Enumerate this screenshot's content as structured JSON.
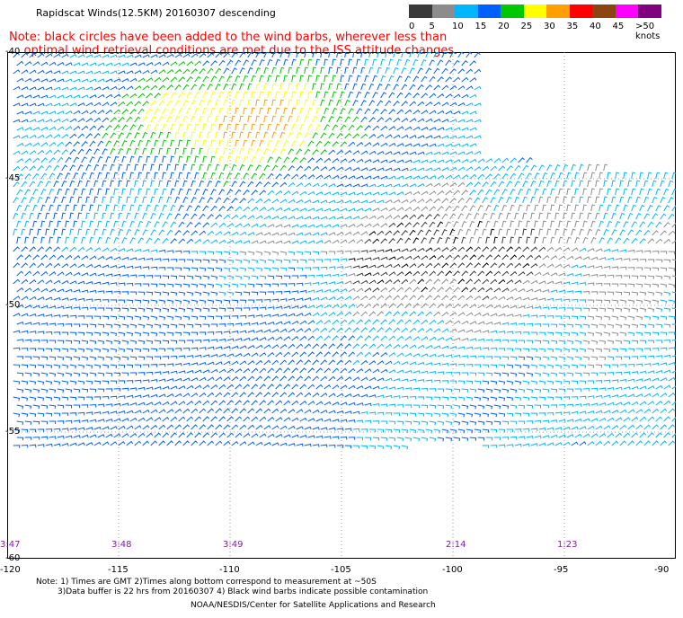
{
  "title": "Rapidscat Winds(12.5KM) 20160307 descending",
  "note": "Note: black circles have been added to the wind barbs, wherever less than\n    optimal wind retrieval conditions are met due to the ISS attitude changes.",
  "legend": {
    "labels": [
      "0",
      "5",
      "10",
      "15",
      "20",
      "25",
      "30",
      "35",
      "40",
      "45",
      ">50 knots"
    ],
    "colors": [
      "#3a3a3a",
      "#8c8c8c",
      "#00b7ff",
      "#0060ff",
      "#00c800",
      "#ffff00",
      "#ffa000",
      "#ff0000",
      "#8b4513",
      "#ff00ff",
      "#800080"
    ]
  },
  "map": {
    "lon_range": [
      -120,
      -90
    ],
    "lat_range": [
      -60,
      -40
    ],
    "lat_labels": [
      "-40",
      "-45",
      "-50",
      "-55",
      "-60"
    ],
    "lon_labels": [
      "-120",
      "-115",
      "-110",
      "-105",
      "-100",
      "-95",
      "-90"
    ],
    "time_labels": [
      {
        "lon": -120,
        "text": "3:47"
      },
      {
        "lon": -115,
        "text": "3:48"
      },
      {
        "lon": -110,
        "text": "3:49"
      },
      {
        "lon": -100,
        "text": "2:14"
      },
      {
        "lon": -95,
        "text": "1:23"
      }
    ]
  },
  "footnote_line1": "Note: 1) Times are GMT 2)Times along bottom correspond to measurement at ~50S",
  "footnote_line2": "3)Data buffer is 22 hrs from 20160307 4) Black wind barbs indicate possible contamination",
  "credit": "NOAA/NESDIS/Center for Satellite Applications and Research"
}
